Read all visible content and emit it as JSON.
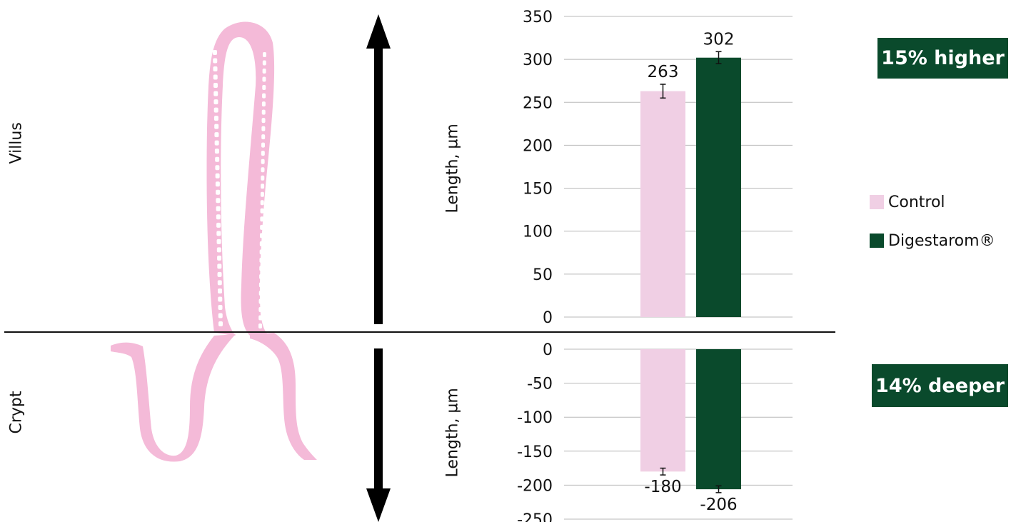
{
  "labels": {
    "villus": "Villus",
    "crypt": "Crypt",
    "length_upper": "Length, µm",
    "length_lower": "Length, µm"
  },
  "badges": {
    "villus": "15% higher",
    "crypt": "14% deeper"
  },
  "colors": {
    "control": "#f0cfe4",
    "digestarom": "#0a4a2c",
    "illustration": "#f4bad8",
    "grid": "#b8b8b8",
    "divider": "#111111"
  },
  "icons": {
    "up_arrow": "arrow-up-icon",
    "down_arrow": "arrow-down-icon",
    "illustration": "villus-crypt-illustration"
  },
  "chart_data": [
    {
      "type": "bar",
      "categories": [
        ""
      ],
      "series": [
        {
          "name": "Control",
          "values": [
            263
          ],
          "error": [
            8
          ]
        },
        {
          "name": "Digestarom®",
          "values": [
            302
          ],
          "error": [
            7
          ]
        }
      ],
      "data_labels": [
        "263",
        "302"
      ],
      "ylim": [
        0,
        350
      ],
      "yticks": [
        0,
        50,
        100,
        150,
        200,
        250,
        300,
        350
      ],
      "ylabel": "Length, µm",
      "grid": true,
      "legend_position": "right"
    },
    {
      "type": "bar",
      "categories": [
        ""
      ],
      "series": [
        {
          "name": "Control",
          "values": [
            -180
          ],
          "error": [
            5
          ]
        },
        {
          "name": "Digestarom®",
          "values": [
            -206
          ],
          "error": [
            5
          ]
        }
      ],
      "data_labels": [
        "-180",
        "-206"
      ],
      "ylim": [
        -250,
        0
      ],
      "yticks": [
        0,
        -50,
        -100,
        -150,
        -200,
        -250
      ],
      "ylabel": "Length, µm",
      "grid": true,
      "legend_position": "right"
    }
  ],
  "legend": [
    {
      "label": "Control",
      "color": "#f0cfe4"
    },
    {
      "label": "Digestarom®",
      "color": "#0a4a2c"
    }
  ]
}
